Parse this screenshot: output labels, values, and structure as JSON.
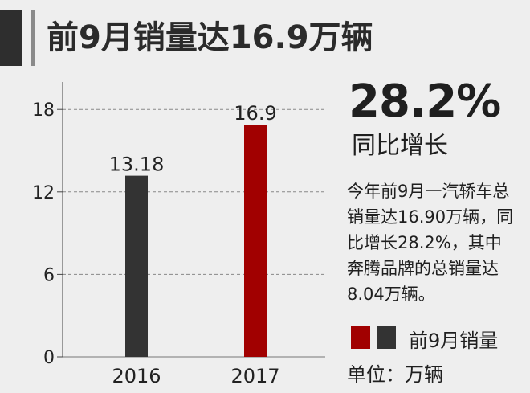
{
  "title": "前9月销量达16.9万辆",
  "highlight": {
    "value": "28.2%",
    "label": "同比增长"
  },
  "description": [
    "今年前9月一汽轿车总",
    "销量达16.90万辆，同",
    "比增长28.2%，其中",
    "奔腾品牌的总销量达",
    "8.04万辆。"
  ],
  "legend": {
    "label": "前9月销量"
  },
  "unit": "单位：万辆",
  "colors": {
    "bar_2016": "#333333",
    "bar_2017": "#a10000",
    "title_dark": "#2e2e2e",
    "title_gray": "#8a8a8a",
    "background": "#eeeeee",
    "grid": "#888888"
  },
  "chart_data": {
    "type": "bar",
    "categories": [
      "2016",
      "2017"
    ],
    "values": [
      13.18,
      16.9
    ],
    "value_labels": [
      "13.18",
      "16.9"
    ],
    "yticks": [
      "0",
      "6",
      "12",
      "18"
    ],
    "ylim": [
      0,
      20
    ],
    "grid": true,
    "title": "",
    "xlabel": "",
    "ylabel": ""
  }
}
